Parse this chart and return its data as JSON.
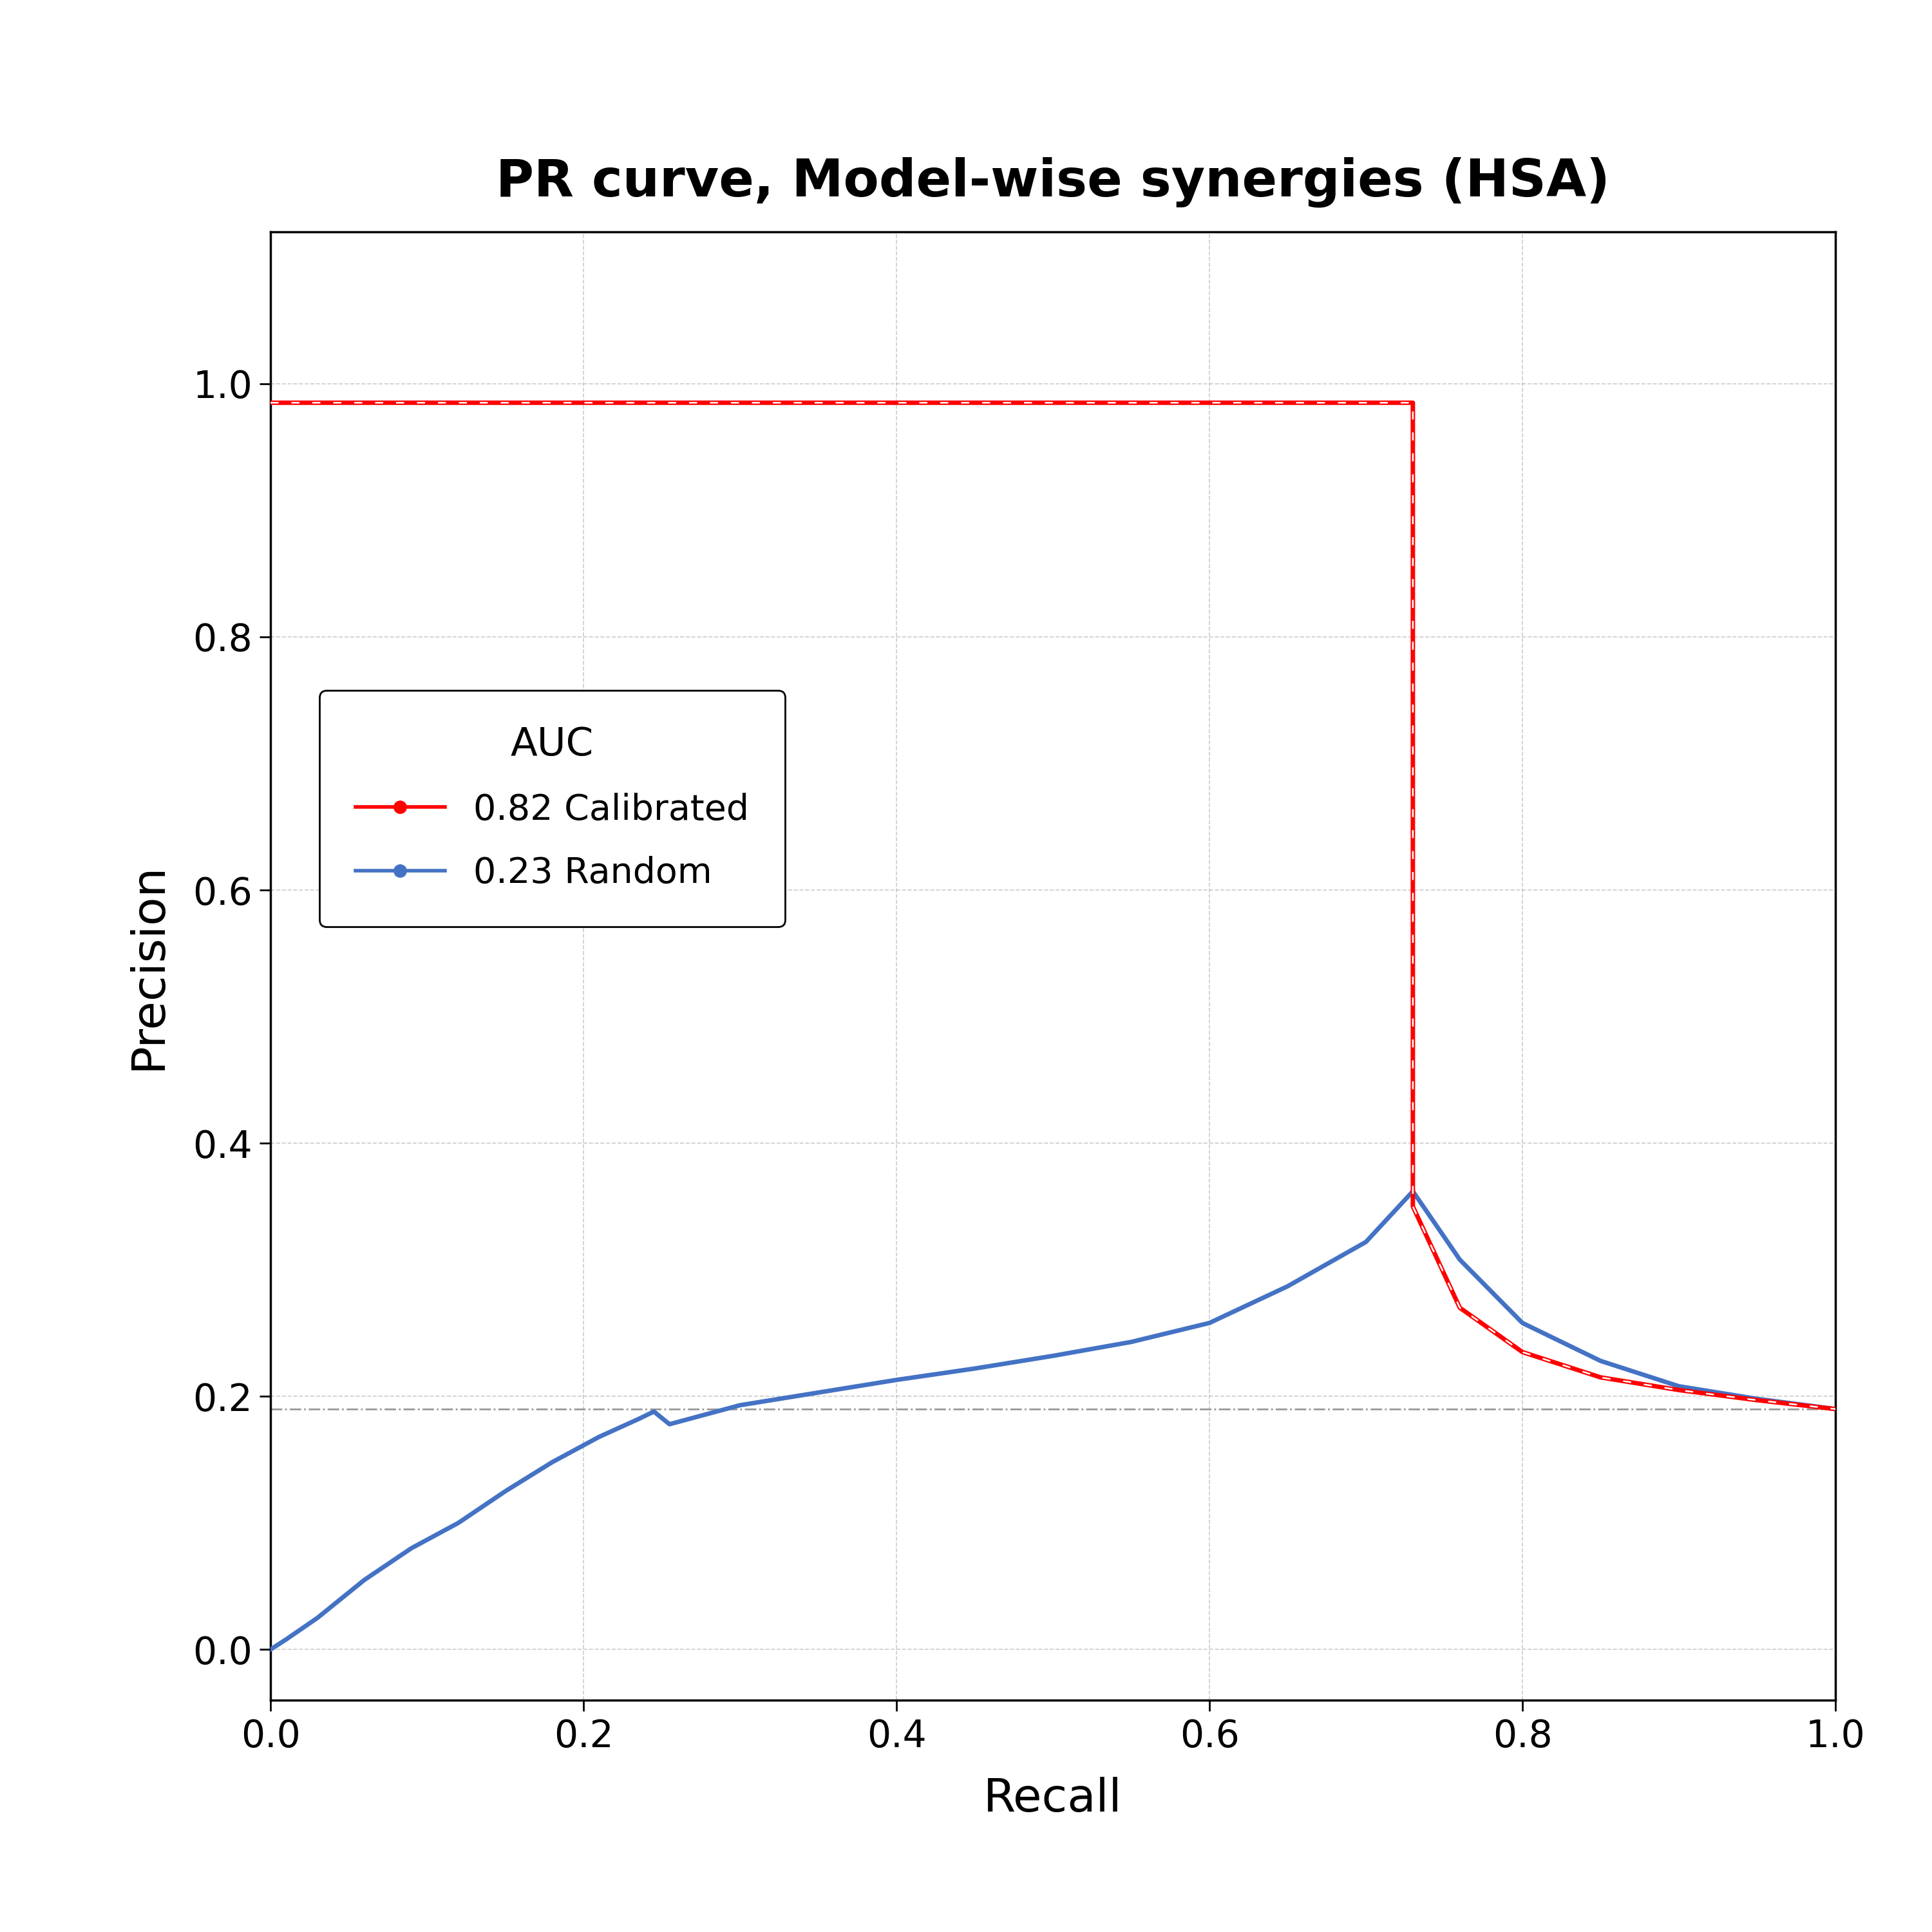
{
  "title": "PR curve, Model-wise synergies (HSA)",
  "xlabel": "Recall",
  "ylabel": "Precision",
  "xlim": [
    0.0,
    1.0
  ],
  "ylim": [
    -0.04,
    1.12
  ],
  "baseline_y": 0.19,
  "legend_title": "AUC",
  "legend_entries": [
    {
      "label": "0.82 Calibrated",
      "color": "#FF0000"
    },
    {
      "label": "0.23 Random",
      "color": "#4472C4"
    }
  ],
  "red_curve": {
    "recall": [
      0.0,
      0.001,
      0.73,
      0.73,
      0.76,
      0.8,
      0.85,
      0.9,
      0.95,
      1.0
    ],
    "precision": [
      0.985,
      0.985,
      0.985,
      0.35,
      0.27,
      0.235,
      0.215,
      0.205,
      0.197,
      0.19
    ],
    "color": "#FF0000",
    "linewidth": 5.0
  },
  "blue_curve": {
    "recall": [
      0.0,
      0.01,
      0.03,
      0.06,
      0.09,
      0.12,
      0.15,
      0.18,
      0.21,
      0.235,
      0.245,
      0.25,
      0.255,
      0.27,
      0.3,
      0.35,
      0.4,
      0.45,
      0.5,
      0.55,
      0.6,
      0.65,
      0.7,
      0.73,
      0.76,
      0.8,
      0.85,
      0.9,
      0.95,
      1.0
    ],
    "precision": [
      0.0,
      0.008,
      0.025,
      0.055,
      0.08,
      0.1,
      0.125,
      0.148,
      0.168,
      0.182,
      0.188,
      0.183,
      0.178,
      0.183,
      0.193,
      0.203,
      0.213,
      0.222,
      0.232,
      0.243,
      0.258,
      0.287,
      0.322,
      0.362,
      0.308,
      0.258,
      0.228,
      0.208,
      0.198,
      0.19
    ],
    "color": "#4472C4",
    "linewidth": 5.0
  },
  "background_color": "#FFFFFF",
  "grid_color": "#AAAAAA",
  "axis_tick_fontsize": 42,
  "axis_label_fontsize": 52,
  "title_fontsize": 58,
  "legend_fontsize": 40,
  "legend_title_fontsize": 44
}
